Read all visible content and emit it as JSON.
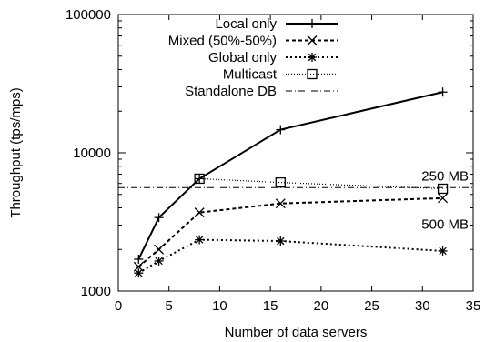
{
  "chart_data": {
    "type": "line",
    "xlabel": "Number of data servers",
    "ylabel": "Throughput (tps/mps)",
    "xlim": [
      0,
      35
    ],
    "ylim": [
      1000,
      100000
    ],
    "y_scale": "log",
    "grid": false,
    "legend_position": "top-left",
    "x_ticks": [
      "0",
      "5",
      "10",
      "15",
      "20",
      "25",
      "30",
      "35"
    ],
    "y_ticks": [
      "1000",
      "10000",
      "100000"
    ],
    "series": [
      {
        "name": "Local only",
        "marker": "plus",
        "line": "solid",
        "x": [
          2,
          4,
          8,
          16,
          32
        ],
        "y": [
          1700,
          3400,
          6500,
          14700,
          27500
        ]
      },
      {
        "name": "Mixed (50%-50%)",
        "marker": "x",
        "line": "dashed",
        "x": [
          2,
          4,
          8,
          16,
          32
        ],
        "y": [
          1500,
          2000,
          3700,
          4300,
          4700
        ]
      },
      {
        "name": "Global only",
        "marker": "star",
        "line": "dotted",
        "x": [
          2,
          4,
          8,
          16,
          32
        ],
        "y": [
          1350,
          1650,
          2350,
          2300,
          1950
        ]
      },
      {
        "name": "Multicast",
        "marker": "square",
        "line": "fine-dotted",
        "x": [
          8,
          16,
          32
        ],
        "y": [
          6500,
          6100,
          5500
        ]
      },
      {
        "name": "Standalone DB",
        "marker": "none",
        "line": "dash-dot",
        "levels": [
          5600,
          2500
        ]
      }
    ],
    "annotations": [
      {
        "text": "250 MB",
        "y": 5600
      },
      {
        "text": "500 MB",
        "y": 2500
      }
    ]
  }
}
